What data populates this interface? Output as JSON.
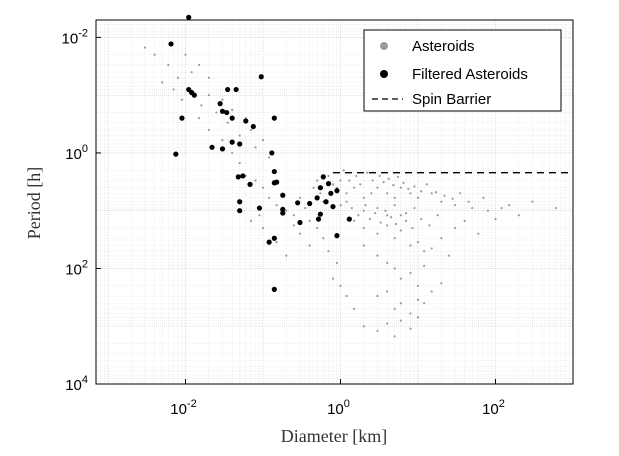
{
  "chart_data": {
    "type": "scatter",
    "title": "",
    "xlabel": "Diameter [km]",
    "ylabel": "Period [h]",
    "x_scale": "log",
    "y_scale": "log",
    "y_reversed": true,
    "xlim": [
      0.0007,
      1000
    ],
    "ylim": [
      0.005,
      10000
    ],
    "x_ticks": [
      {
        "value": 0.01,
        "base": "10",
        "exp": "-2"
      },
      {
        "value": 1,
        "base": "10",
        "exp": "0",
        "label": "10"
      },
      {
        "value": 100,
        "base": "10",
        "exp": "2"
      }
    ],
    "y_ticks": [
      {
        "value": 0.01,
        "base": "10",
        "exp": "-2"
      },
      {
        "value": 1,
        "base": "10",
        "exp": "0"
      },
      {
        "value": 100,
        "base": "10",
        "exp": "2"
      },
      {
        "value": 10000,
        "base": "10",
        "exp": "4"
      }
    ],
    "grid": true,
    "legend_position": "top-right",
    "series": [
      {
        "name": "Asteroids",
        "marker": "dot",
        "color": "#9a9a9a",
        "points": [
          [
            0.003,
            0.015
          ],
          [
            0.004,
            0.02
          ],
          [
            0.006,
            0.03
          ],
          [
            0.008,
            0.05
          ],
          [
            0.01,
            0.02
          ],
          [
            0.012,
            0.04
          ],
          [
            0.015,
            0.03
          ],
          [
            0.02,
            0.05
          ],
          [
            0.005,
            0.06
          ],
          [
            0.007,
            0.08
          ],
          [
            0.009,
            0.12
          ],
          [
            0.012,
            0.09
          ],
          [
            0.016,
            0.15
          ],
          [
            0.02,
            0.1
          ],
          [
            0.025,
            0.2
          ],
          [
            0.03,
            0.12
          ],
          [
            0.035,
            0.3
          ],
          [
            0.04,
            0.18
          ],
          [
            0.05,
            0.5
          ],
          [
            0.06,
            0.25
          ],
          [
            0.07,
            0.4
          ],
          [
            0.08,
            0.8
          ],
          [
            0.1,
            0.6
          ],
          [
            0.12,
            1.2
          ],
          [
            0.015,
            0.25
          ],
          [
            0.02,
            0.4
          ],
          [
            0.03,
            0.6
          ],
          [
            0.04,
            1.0
          ],
          [
            0.05,
            1.5
          ],
          [
            0.06,
            2.5
          ],
          [
            0.08,
            3
          ],
          [
            0.1,
            4
          ],
          [
            0.12,
            6
          ],
          [
            0.15,
            8
          ],
          [
            0.2,
            10
          ],
          [
            0.25,
            12
          ],
          [
            0.3,
            6
          ],
          [
            0.35,
            9
          ],
          [
            0.4,
            15
          ],
          [
            0.45,
            4
          ],
          [
            0.5,
            3
          ],
          [
            0.55,
            5
          ],
          [
            0.6,
            7
          ],
          [
            0.7,
            2.5
          ],
          [
            0.8,
            3.5
          ],
          [
            0.9,
            4
          ],
          [
            1.0,
            3
          ],
          [
            1.2,
            5
          ],
          [
            1.5,
            4
          ],
          [
            2,
            6
          ],
          [
            2.5,
            5
          ],
          [
            3,
            4
          ],
          [
            4,
            5
          ],
          [
            5,
            6
          ],
          [
            6,
            4
          ],
          [
            8,
            5
          ],
          [
            10,
            6
          ],
          [
            15,
            5
          ],
          [
            20,
            7
          ],
          [
            30,
            8
          ],
          [
            50,
            9
          ],
          [
            80,
            10
          ],
          [
            150,
            8
          ],
          [
            300,
            7
          ],
          [
            600,
            9
          ],
          [
            1,
            8
          ],
          [
            2,
            10
          ],
          [
            3,
            9
          ],
          [
            4,
            12
          ],
          [
            5,
            8
          ],
          [
            7,
            11
          ],
          [
            9,
            9
          ],
          [
            1.5,
            15
          ],
          [
            2,
            20
          ],
          [
            3,
            25
          ],
          [
            4,
            18
          ],
          [
            5,
            30
          ],
          [
            6,
            22
          ],
          [
            8,
            40
          ],
          [
            10,
            35
          ],
          [
            12,
            50
          ],
          [
            15,
            45
          ],
          [
            20,
            30
          ],
          [
            25,
            60
          ],
          [
            30,
            20
          ],
          [
            40,
            15
          ],
          [
            60,
            25
          ],
          [
            100,
            14
          ],
          [
            2,
            40
          ],
          [
            3,
            60
          ],
          [
            4,
            80
          ],
          [
            5,
            100
          ],
          [
            6,
            150
          ],
          [
            8,
            120
          ],
          [
            10,
            200
          ],
          [
            12,
            90
          ],
          [
            3,
            300
          ],
          [
            4,
            250
          ],
          [
            5,
            500
          ],
          [
            6,
            400
          ],
          [
            8,
            600
          ],
          [
            10,
            350
          ],
          [
            15,
            250
          ],
          [
            20,
            180
          ],
          [
            2,
            1000
          ],
          [
            3,
            1200
          ],
          [
            4,
            900
          ],
          [
            5,
            1500
          ],
          [
            6,
            800
          ],
          [
            8,
            1100
          ],
          [
            10,
            700
          ],
          [
            12,
            400
          ],
          [
            0.8,
            150
          ],
          [
            1,
            200
          ],
          [
            1.2,
            300
          ],
          [
            1.5,
            500
          ],
          [
            0.9,
            80
          ],
          [
            0.7,
            50
          ],
          [
            0.6,
            30
          ],
          [
            0.5,
            20
          ],
          [
            0.4,
            40
          ],
          [
            0.3,
            25
          ],
          [
            0.25,
            18
          ],
          [
            0.2,
            60
          ],
          [
            0.15,
            35
          ],
          [
            0.1,
            20
          ],
          [
            0.09,
            12
          ],
          [
            0.07,
            15
          ],
          [
            1.1,
            2
          ],
          [
            1.3,
            3
          ],
          [
            1.6,
            2.5
          ],
          [
            1.8,
            3.5
          ],
          [
            2.2,
            2.2
          ],
          [
            2.6,
            3
          ],
          [
            3.2,
            2.5
          ],
          [
            3.6,
            3.2
          ],
          [
            4.2,
            2.8
          ],
          [
            4.8,
            3.6
          ],
          [
            5.5,
            2.6
          ],
          [
            6.5,
            3.3
          ],
          [
            7.5,
            4.2
          ],
          [
            9,
            3.8
          ],
          [
            11,
            4.6
          ],
          [
            13,
            3.5
          ],
          [
            17,
            4.8
          ],
          [
            22,
            5.5
          ],
          [
            28,
            6.2
          ],
          [
            35,
            5
          ],
          [
            45,
            7
          ],
          [
            70,
            6
          ],
          [
            120,
            9
          ],
          [
            200,
            12
          ],
          [
            1.2,
            7
          ],
          [
            1.4,
            9
          ],
          [
            1.7,
            12
          ],
          [
            2.1,
            8
          ],
          [
            2.4,
            14
          ],
          [
            2.8,
            11
          ],
          [
            3.3,
            16
          ],
          [
            3.8,
            10
          ],
          [
            4.5,
            13
          ],
          [
            5.2,
            17
          ],
          [
            6,
            12
          ],
          [
            7,
            15
          ],
          [
            8.5,
            20
          ],
          [
            11,
            14
          ],
          [
            14,
            18
          ],
          [
            18,
            12
          ]
        ]
      },
      {
        "name": "Filtered Asteroids",
        "marker": "circle",
        "color": "#000000",
        "points": [
          [
            0.011,
            0.0045
          ],
          [
            0.0065,
            0.013
          ],
          [
            0.095,
            0.048
          ],
          [
            0.011,
            0.08
          ],
          [
            0.012,
            0.09
          ],
          [
            0.013,
            0.1
          ],
          [
            0.045,
            0.08
          ],
          [
            0.028,
            0.14
          ],
          [
            0.03,
            0.19
          ],
          [
            0.034,
            0.2
          ],
          [
            0.04,
            0.25
          ],
          [
            0.009,
            0.25
          ],
          [
            0.14,
            0.25
          ],
          [
            0.06,
            0.28
          ],
          [
            0.035,
            0.08
          ],
          [
            0.075,
            0.35
          ],
          [
            0.05,
            0.7
          ],
          [
            0.04,
            0.65
          ],
          [
            0.022,
            0.8
          ],
          [
            0.03,
            0.85
          ],
          [
            0.0075,
            1.05
          ],
          [
            0.13,
            1.0
          ],
          [
            0.14,
            2.1
          ],
          [
            0.048,
            2.6
          ],
          [
            0.055,
            2.5
          ],
          [
            0.068,
            3.5
          ],
          [
            0.14,
            3.3
          ],
          [
            0.15,
            3.2
          ],
          [
            0.18,
            5.4
          ],
          [
            0.6,
            2.6
          ],
          [
            0.7,
            3.4
          ],
          [
            0.55,
            4.0
          ],
          [
            0.75,
            5.0
          ],
          [
            0.5,
            6.0
          ],
          [
            0.9,
            4.5
          ],
          [
            0.65,
            7.0
          ],
          [
            0.8,
            8.5
          ],
          [
            0.4,
            7.5
          ],
          [
            0.28,
            7.3
          ],
          [
            0.05,
            7.0
          ],
          [
            0.05,
            10
          ],
          [
            0.09,
            9
          ],
          [
            0.18,
            9.5
          ],
          [
            0.18,
            11.0
          ],
          [
            0.3,
            16
          ],
          [
            0.52,
            14.0
          ],
          [
            1.3,
            14.0
          ],
          [
            0.14,
            30
          ],
          [
            0.9,
            27
          ],
          [
            0.12,
            35
          ],
          [
            0.14,
            230
          ],
          [
            0.55,
            11.5
          ]
        ]
      },
      {
        "name": "Spin Barrier",
        "marker": "dashed-line",
        "color": "#000000",
        "points": [
          [
            0.8,
            2.2
          ],
          [
            1000,
            2.2
          ]
        ]
      }
    ]
  }
}
